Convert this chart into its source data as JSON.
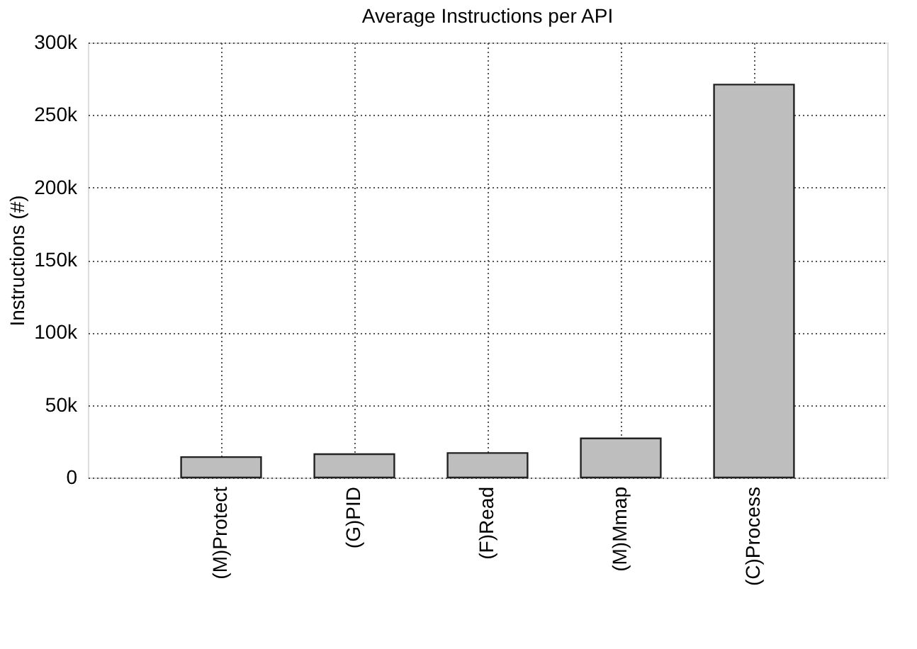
{
  "chart_data": {
    "type": "bar",
    "title": "Average Instructions per API",
    "ylabel": "Instructions (#)",
    "categories": [
      "(M)Protect",
      "(G)PID",
      "(F)Read",
      "(M)Mmap",
      "(C)Process"
    ],
    "values": [
      14100,
      16100,
      16900,
      27000,
      271000
    ],
    "color": "#bebebe",
    "ylim": [
      0,
      300000
    ],
    "yticks": [
      0,
      {
        "value": 50000,
        "label": "50k"
      },
      {
        "value": 100000,
        "label": "100k"
      },
      {
        "value": 150000,
        "label": "150k"
      },
      {
        "value": 200000,
        "label": "200k"
      },
      {
        "value": 250000,
        "label": "250k"
      },
      {
        "value": 300000,
        "label": "300k"
      }
    ],
    "grid": true
  }
}
